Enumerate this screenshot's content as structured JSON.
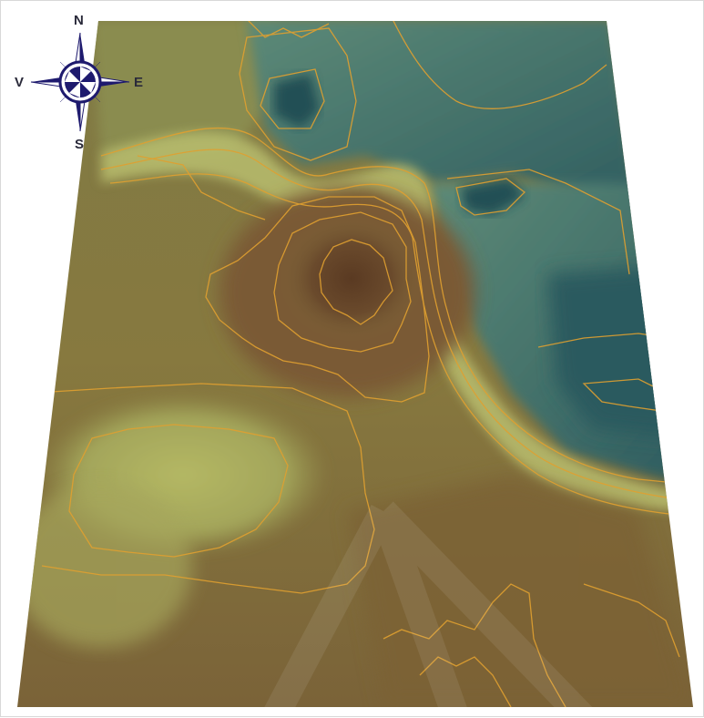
{
  "map": {
    "palette": {
      "high": "#5a3a22",
      "mid_high": "#7a5a34",
      "mid": "#8a7a45",
      "low_plain": "#9a9a55",
      "slope_light": "#b7bd6a",
      "basin": "#4f7f73",
      "deep_basin": "#2d5c5f",
      "contour": "#e0a030"
    },
    "compass": {
      "north_label": "N",
      "south_label": "S",
      "east_label": "E",
      "west_label": "V",
      "rose_color": "#1e1a6e",
      "icon": "compass-rose-icon"
    }
  }
}
